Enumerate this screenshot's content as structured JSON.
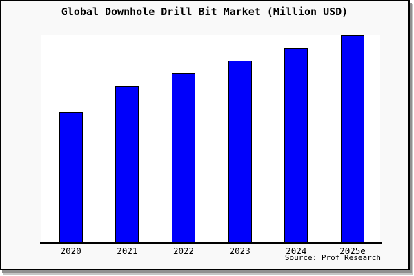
{
  "chart_data": {
    "type": "bar",
    "title": "Global Downhole Drill Bit Market (Million USD)",
    "categories": [
      "2020",
      "2021",
      "2022",
      "2023",
      "2024",
      "2025e"
    ],
    "values": [
      62.7,
      75.3,
      81.7,
      87.7,
      93.7,
      100
    ],
    "xlabel": "",
    "ylabel": "",
    "ylim": [
      0,
      100
    ],
    "grid": false,
    "legend": false,
    "value_note": "relative scale; no y-axis or value labels visible in chart",
    "bar_color": "#0000fb",
    "bar_border_color": "#000000",
    "plot_bg": "#ffffff",
    "figure_bg": "#f9f9f9",
    "axis_color": "#000000"
  },
  "footer": {
    "source_label": "Source: Prof Research"
  }
}
